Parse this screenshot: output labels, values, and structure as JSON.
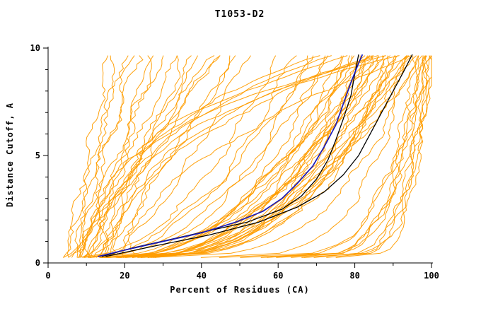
{
  "chart_data": {
    "type": "line",
    "title": "T1053-D2",
    "xlabel": "Percent of Residues (CA)",
    "ylabel": "Distance Cutoff, A",
    "xlim": [
      0,
      100
    ],
    "ylim": [
      0,
      10
    ],
    "xticks": [
      0,
      20,
      40,
      60,
      80,
      100
    ],
    "yticks": [
      0,
      5,
      10
    ],
    "x_minor_ticks": [
      10,
      30,
      50,
      70,
      90
    ],
    "y_minor_ticks": [
      1,
      2,
      3,
      4,
      6,
      7,
      8,
      9
    ],
    "grid": false,
    "legend": "none",
    "colors": {
      "ensemble": "#ff9d00",
      "black_model": "#000000",
      "blue_model": "#1a1ab8",
      "axis": "#000000"
    },
    "curve_y_start": 0.25,
    "curve_y_end": 9.7,
    "ensemble_curve_format": [
      "percent_at_cutoff_0.25",
      "percent_at_cutoff_9.7",
      "shape_exponent"
    ],
    "ensemble_curves": [
      [
        4,
        16,
        0.9
      ],
      [
        5,
        20,
        1.1
      ],
      [
        6,
        18,
        0.8
      ],
      [
        7,
        24,
        1.2
      ],
      [
        5,
        28,
        0.7
      ],
      [
        8,
        22,
        1.0
      ],
      [
        9,
        30,
        1.3
      ],
      [
        6,
        34,
        0.9
      ],
      [
        10,
        26,
        0.8
      ],
      [
        11,
        38,
        1.1
      ],
      [
        7,
        42,
        0.95
      ],
      [
        12,
        35,
        0.75
      ],
      [
        8,
        45,
        1.2
      ],
      [
        13,
        48,
        0.85
      ],
      [
        9,
        40,
        1.0
      ],
      [
        14,
        44,
        1.15
      ],
      [
        10,
        50,
        0.9
      ],
      [
        15,
        52,
        0.7
      ],
      [
        8,
        60,
        0.5
      ],
      [
        10,
        64,
        0.45
      ],
      [
        12,
        68,
        0.4
      ],
      [
        9,
        70,
        0.55
      ],
      [
        14,
        72,
        0.35
      ],
      [
        11,
        74,
        0.5
      ],
      [
        13,
        76,
        0.3
      ],
      [
        16,
        78,
        0.45
      ],
      [
        12,
        80,
        0.4
      ],
      [
        18,
        80,
        0.5
      ],
      [
        15,
        82,
        0.35
      ],
      [
        20,
        82,
        0.55
      ],
      [
        14,
        84,
        0.3
      ],
      [
        22,
        84,
        0.45
      ],
      [
        17,
        86,
        0.4
      ],
      [
        24,
        86,
        0.5
      ],
      [
        16,
        88,
        0.35
      ],
      [
        26,
        88,
        0.55
      ],
      [
        19,
        90,
        0.3
      ],
      [
        28,
        90,
        0.45
      ],
      [
        18,
        92,
        0.4
      ],
      [
        21,
        92,
        0.5
      ],
      [
        23,
        94,
        0.35
      ],
      [
        25,
        94,
        0.45
      ],
      [
        20,
        96,
        0.4
      ],
      [
        27,
        96,
        0.3
      ],
      [
        22,
        85,
        0.6
      ],
      [
        13,
        78,
        0.25
      ],
      [
        15,
        90,
        0.28
      ],
      [
        17,
        83,
        0.33
      ],
      [
        19,
        87,
        0.52
      ],
      [
        24,
        91,
        0.38
      ],
      [
        26,
        93,
        0.42
      ],
      [
        28,
        95,
        0.48
      ],
      [
        10,
        70,
        2.2
      ],
      [
        12,
        80,
        2.8
      ],
      [
        15,
        85,
        2.0
      ],
      [
        18,
        90,
        3.2
      ],
      [
        14,
        75,
        2.5
      ],
      [
        20,
        95,
        1.8
      ],
      [
        16,
        88,
        2.6
      ],
      [
        22,
        92,
        3.0
      ],
      [
        45,
        97,
        0.2
      ],
      [
        55,
        98,
        0.18
      ],
      [
        60,
        99,
        0.22
      ],
      [
        65,
        100,
        0.2
      ],
      [
        70,
        100,
        0.25
      ],
      [
        75,
        100,
        0.2
      ],
      [
        50,
        96,
        0.15
      ],
      [
        58,
        99,
        0.3
      ],
      [
        62,
        98,
        0.25
      ],
      [
        68,
        100,
        0.18
      ],
      [
        72,
        99,
        0.22
      ],
      [
        40,
        95,
        0.25
      ]
    ],
    "highlight_curves": [
      {
        "name": "model-black-2",
        "color": "#000000",
        "width": 1.3,
        "points": [
          [
            15,
            0.3
          ],
          [
            28,
            0.8
          ],
          [
            42,
            1.3
          ],
          [
            55,
            1.9
          ],
          [
            65,
            2.6
          ],
          [
            72,
            3.3
          ],
          [
            77,
            4.1
          ],
          [
            81,
            5.0
          ],
          [
            84,
            6.0
          ],
          [
            87,
            7.0
          ],
          [
            90,
            8.0
          ],
          [
            93,
            9.0
          ],
          [
            95,
            9.7
          ]
        ]
      },
      {
        "name": "model-black-1",
        "color": "#000000",
        "width": 1.3,
        "points": [
          [
            14,
            0.3
          ],
          [
            22,
            0.7
          ],
          [
            32,
            1.1
          ],
          [
            42,
            1.5
          ],
          [
            52,
            1.9
          ],
          [
            61,
            2.5
          ],
          [
            66,
            3.1
          ],
          [
            70,
            3.9
          ],
          [
            73,
            4.8
          ],
          [
            75,
            5.7
          ],
          [
            77,
            6.7
          ],
          [
            79,
            7.8
          ],
          [
            80,
            8.8
          ],
          [
            81,
            9.7
          ]
        ]
      },
      {
        "name": "model-blue",
        "color": "#1a1ab8",
        "width": 1.7,
        "points": [
          [
            13,
            0.3
          ],
          [
            20,
            0.6
          ],
          [
            30,
            1.0
          ],
          [
            40,
            1.4
          ],
          [
            49,
            1.9
          ],
          [
            56,
            2.4
          ],
          [
            61,
            3.0
          ],
          [
            65,
            3.7
          ],
          [
            69,
            4.5
          ],
          [
            72,
            5.4
          ],
          [
            75,
            6.4
          ],
          [
            77,
            7.4
          ],
          [
            79,
            8.4
          ],
          [
            81,
            9.3
          ],
          [
            82,
            9.7
          ]
        ]
      }
    ]
  }
}
